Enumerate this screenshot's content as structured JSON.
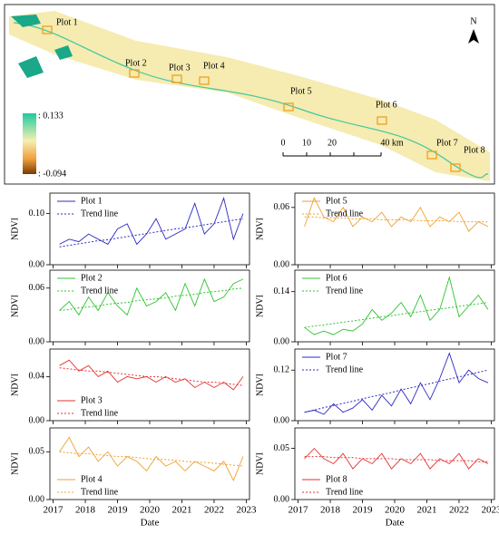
{
  "map": {
    "north": "N",
    "legend_max": ": 0.133",
    "legend_min": ": -0.094",
    "scale": [
      "0",
      "10",
      "20",
      "40 km"
    ],
    "plots": [
      "Plot 1",
      "Plot 2",
      "Plot 3",
      "Plot 4",
      "Plot 5",
      "Plot 6",
      "Plot 7",
      "Plot 8"
    ]
  },
  "chart_data": [
    {
      "type": "line",
      "ylabel": "NDVI",
      "legend": "upper left",
      "x": [
        2017.2,
        2017.5,
        2017.8,
        2018.1,
        2018.4,
        2018.7,
        2019.0,
        2019.3,
        2019.6,
        2019.9,
        2020.2,
        2020.5,
        2020.8,
        2021.1,
        2021.4,
        2021.7,
        2022.0,
        2022.3,
        2022.6,
        2022.9
      ],
      "xlim": [
        2016.9,
        2023.1
      ],
      "xticks": [
        2017,
        2018,
        2019,
        2020,
        2021,
        2022,
        2023
      ],
      "ylim": [
        0,
        0.14
      ],
      "yticks": [
        {
          "value": 0,
          "label": "0.00"
        },
        {
          "value": 0.1,
          "label": "0.10"
        }
      ],
      "series": [
        {
          "name": "Plot 1",
          "color": "#2b2bc4",
          "values": [
            0.04,
            0.05,
            0.045,
            0.06,
            0.05,
            0.04,
            0.07,
            0.08,
            0.04,
            0.06,
            0.09,
            0.05,
            0.06,
            0.07,
            0.12,
            0.06,
            0.08,
            0.13,
            0.05,
            0.1
          ]
        },
        {
          "name": "Trend line",
          "color": "#2b2bc4",
          "values": [
            0.035,
            0.038,
            0.041,
            0.044,
            0.047,
            0.049,
            0.052,
            0.055,
            0.058,
            0.061,
            0.064,
            0.067,
            0.07,
            0.072,
            0.075,
            0.078,
            0.081,
            0.084,
            0.087,
            0.09
          ]
        }
      ]
    },
    {
      "type": "line",
      "ylabel": "NDVI",
      "legend": "upper left",
      "x": [
        2017.2,
        2017.5,
        2017.8,
        2018.1,
        2018.4,
        2018.7,
        2019.0,
        2019.3,
        2019.6,
        2019.9,
        2020.2,
        2020.5,
        2020.8,
        2021.1,
        2021.4,
        2021.7,
        2022.0,
        2022.3,
        2022.6,
        2022.9
      ],
      "xlim": [
        2016.9,
        2023.1
      ],
      "xticks": [
        2017,
        2018,
        2019,
        2020,
        2021,
        2022,
        2023
      ],
      "ylim": [
        0,
        0.08
      ],
      "yticks": [
        {
          "value": 0,
          "label": "0.00"
        },
        {
          "value": 0.06,
          "label": "0.06"
        }
      ],
      "series": [
        {
          "name": "Plot 2",
          "color": "#2fc42f",
          "values": [
            0.035,
            0.045,
            0.03,
            0.05,
            0.035,
            0.055,
            0.04,
            0.03,
            0.06,
            0.04,
            0.045,
            0.055,
            0.035,
            0.065,
            0.04,
            0.07,
            0.045,
            0.05,
            0.065,
            0.07
          ]
        },
        {
          "name": "Trend line",
          "color": "#2fc42f",
          "values": [
            0.035,
            0.036,
            0.038,
            0.039,
            0.04,
            0.042,
            0.043,
            0.044,
            0.046,
            0.047,
            0.048,
            0.049,
            0.051,
            0.052,
            0.053,
            0.055,
            0.056,
            0.057,
            0.059,
            0.06
          ]
        }
      ]
    },
    {
      "type": "line",
      "ylabel": "NDVI",
      "legend": "lower left",
      "x": [
        2017.2,
        2017.5,
        2017.8,
        2018.1,
        2018.4,
        2018.7,
        2019.0,
        2019.3,
        2019.6,
        2019.9,
        2020.2,
        2020.5,
        2020.8,
        2021.1,
        2021.4,
        2021.7,
        2022.0,
        2022.3,
        2022.6,
        2022.9
      ],
      "xlim": [
        2016.9,
        2023.1
      ],
      "xticks": [
        2017,
        2018,
        2019,
        2020,
        2021,
        2022,
        2023
      ],
      "ylim": [
        0,
        0.065
      ],
      "yticks": [
        {
          "value": 0,
          "label": "0.00"
        },
        {
          "value": 0.04,
          "label": "0.04"
        }
      ],
      "series": [
        {
          "name": "Plot 3",
          "color": "#e63232",
          "values": [
            0.05,
            0.055,
            0.045,
            0.05,
            0.04,
            0.045,
            0.035,
            0.04,
            0.038,
            0.04,
            0.035,
            0.04,
            0.035,
            0.038,
            0.03,
            0.035,
            0.03,
            0.035,
            0.028,
            0.04
          ]
        },
        {
          "name": "Trend line",
          "color": "#e63232",
          "values": [
            0.048,
            0.047,
            0.046,
            0.045,
            0.045,
            0.044,
            0.043,
            0.042,
            0.041,
            0.04,
            0.04,
            0.039,
            0.038,
            0.037,
            0.036,
            0.035,
            0.035,
            0.034,
            0.033,
            0.032
          ]
        }
      ]
    },
    {
      "type": "line",
      "ylabel": "NDVI",
      "xlabel": "Date",
      "legend": "lower left",
      "x": [
        2017.2,
        2017.5,
        2017.8,
        2018.1,
        2018.4,
        2018.7,
        2019.0,
        2019.3,
        2019.6,
        2019.9,
        2020.2,
        2020.5,
        2020.8,
        2021.1,
        2021.4,
        2021.7,
        2022.0,
        2022.3,
        2022.6,
        2022.9
      ],
      "xlim": [
        2016.9,
        2023.1
      ],
      "xticks": [
        2017,
        2018,
        2019,
        2020,
        2021,
        2022,
        2023
      ],
      "ylim": [
        0,
        0.075
      ],
      "yticks": [
        {
          "value": 0,
          "label": "0.00"
        },
        {
          "value": 0.05,
          "label": "0.05"
        }
      ],
      "series": [
        {
          "name": "Plot 4",
          "color": "#f0a030",
          "values": [
            0.05,
            0.065,
            0.045,
            0.055,
            0.04,
            0.05,
            0.035,
            0.045,
            0.04,
            0.03,
            0.045,
            0.035,
            0.04,
            0.03,
            0.04,
            0.035,
            0.03,
            0.04,
            0.02,
            0.045
          ]
        },
        {
          "name": "Trend line",
          "color": "#f0a030",
          "values": [
            0.05,
            0.049,
            0.048,
            0.048,
            0.047,
            0.046,
            0.045,
            0.045,
            0.044,
            0.043,
            0.042,
            0.042,
            0.041,
            0.04,
            0.039,
            0.039,
            0.038,
            0.037,
            0.036,
            0.035
          ]
        }
      ]
    },
    {
      "type": "line",
      "ylabel": "NDVI",
      "legend": "upper left",
      "x": [
        2017.2,
        2017.5,
        2017.8,
        2018.1,
        2018.4,
        2018.7,
        2019.0,
        2019.3,
        2019.6,
        2019.9,
        2020.2,
        2020.5,
        2020.8,
        2021.1,
        2021.4,
        2021.7,
        2022.0,
        2022.3,
        2022.6,
        2022.9
      ],
      "xlim": [
        2016.9,
        2023.1
      ],
      "xticks": [
        2017,
        2018,
        2019,
        2020,
        2021,
        2022,
        2023
      ],
      "ylim": [
        0,
        0.075
      ],
      "yticks": [
        {
          "value": 0,
          "label": "0.00"
        },
        {
          "value": 0.06,
          "label": "0.06"
        }
      ],
      "series": [
        {
          "name": "Plot 5",
          "color": "#f0a030",
          "values": [
            0.04,
            0.07,
            0.05,
            0.045,
            0.06,
            0.04,
            0.05,
            0.045,
            0.055,
            0.04,
            0.05,
            0.045,
            0.06,
            0.04,
            0.05,
            0.045,
            0.055,
            0.035,
            0.045,
            0.04
          ]
        },
        {
          "name": "Trend line",
          "color": "#f0a030",
          "values": [
            0.05,
            0.05,
            0.049,
            0.049,
            0.049,
            0.048,
            0.048,
            0.048,
            0.047,
            0.047,
            0.047,
            0.047,
            0.046,
            0.046,
            0.046,
            0.046,
            0.045,
            0.045,
            0.045,
            0.045
          ]
        }
      ]
    },
    {
      "type": "line",
      "ylabel": "NDVI",
      "legend": "upper left",
      "x": [
        2017.2,
        2017.5,
        2017.8,
        2018.1,
        2018.4,
        2018.7,
        2019.0,
        2019.3,
        2019.6,
        2019.9,
        2020.2,
        2020.5,
        2020.8,
        2021.1,
        2021.4,
        2021.7,
        2022.0,
        2022.3,
        2022.6,
        2022.9
      ],
      "xlim": [
        2016.9,
        2023.1
      ],
      "xticks": [
        2017,
        2018,
        2019,
        2020,
        2021,
        2022,
        2023
      ],
      "ylim": [
        0,
        0.2
      ],
      "yticks": [
        {
          "value": 0,
          "label": "0.00"
        },
        {
          "value": 0.14,
          "label": "0.14"
        }
      ],
      "series": [
        {
          "name": "Plot 6",
          "color": "#2fc42f",
          "values": [
            0.04,
            0.02,
            0.03,
            0.02,
            0.035,
            0.03,
            0.05,
            0.09,
            0.06,
            0.08,
            0.11,
            0.07,
            0.13,
            0.06,
            0.09,
            0.18,
            0.07,
            0.1,
            0.13,
            0.09
          ]
        },
        {
          "name": "Trend line",
          "color": "#2fc42f",
          "values": [
            0.04,
            0.044,
            0.047,
            0.051,
            0.055,
            0.058,
            0.062,
            0.066,
            0.07,
            0.073,
            0.077,
            0.081,
            0.084,
            0.088,
            0.092,
            0.095,
            0.099,
            0.103,
            0.106,
            0.11
          ]
        }
      ]
    },
    {
      "type": "line",
      "ylabel": "NDVI",
      "legend": "upper left",
      "x": [
        2017.2,
        2017.5,
        2017.8,
        2018.1,
        2018.4,
        2018.7,
        2019.0,
        2019.3,
        2019.6,
        2019.9,
        2020.2,
        2020.5,
        2020.8,
        2021.1,
        2021.4,
        2021.7,
        2022.0,
        2022.3,
        2022.6,
        2022.9
      ],
      "xlim": [
        2016.9,
        2023.1
      ],
      "xticks": [
        2017,
        2018,
        2019,
        2020,
        2021,
        2022,
        2023
      ],
      "ylim": [
        0,
        0.17
      ],
      "yticks": [
        {
          "value": 0,
          "label": "0.00"
        },
        {
          "value": 0.12,
          "label": "0.12"
        }
      ],
      "series": [
        {
          "name": "Plot 7",
          "color": "#2b2bc4",
          "values": [
            0.02,
            0.025,
            0.015,
            0.04,
            0.02,
            0.03,
            0.05,
            0.025,
            0.06,
            0.035,
            0.075,
            0.04,
            0.09,
            0.05,
            0.1,
            0.16,
            0.09,
            0.12,
            0.1,
            0.09
          ]
        },
        {
          "name": "Trend line",
          "color": "#2b2bc4",
          "values": [
            0.02,
            0.025,
            0.031,
            0.036,
            0.041,
            0.046,
            0.052,
            0.057,
            0.062,
            0.067,
            0.073,
            0.078,
            0.083,
            0.088,
            0.094,
            0.099,
            0.104,
            0.109,
            0.115,
            0.12
          ]
        }
      ]
    },
    {
      "type": "line",
      "ylabel": "NDVI",
      "xlabel": "Date",
      "legend": "lower left",
      "x": [
        2017.2,
        2017.5,
        2017.8,
        2018.1,
        2018.4,
        2018.7,
        2019.0,
        2019.3,
        2019.6,
        2019.9,
        2020.2,
        2020.5,
        2020.8,
        2021.1,
        2021.4,
        2021.7,
        2022.0,
        2022.3,
        2022.6,
        2022.9
      ],
      "xlim": [
        2016.9,
        2023.1
      ],
      "xticks": [
        2017,
        2018,
        2019,
        2020,
        2021,
        2022,
        2023
      ],
      "ylim": [
        0,
        0.07
      ],
      "yticks": [
        {
          "value": 0,
          "label": "0.00"
        },
        {
          "value": 0.05,
          "label": "0.05"
        }
      ],
      "series": [
        {
          "name": "Plot 8",
          "color": "#e63232",
          "values": [
            0.04,
            0.05,
            0.04,
            0.035,
            0.045,
            0.03,
            0.04,
            0.035,
            0.045,
            0.03,
            0.04,
            0.035,
            0.045,
            0.03,
            0.04,
            0.035,
            0.045,
            0.03,
            0.04,
            0.035
          ]
        },
        {
          "name": "Trend line",
          "color": "#e63232",
          "values": [
            0.042,
            0.042,
            0.042,
            0.041,
            0.041,
            0.041,
            0.04,
            0.04,
            0.04,
            0.04,
            0.039,
            0.039,
            0.039,
            0.039,
            0.038,
            0.038,
            0.038,
            0.038,
            0.037,
            0.037
          ]
        }
      ]
    }
  ]
}
